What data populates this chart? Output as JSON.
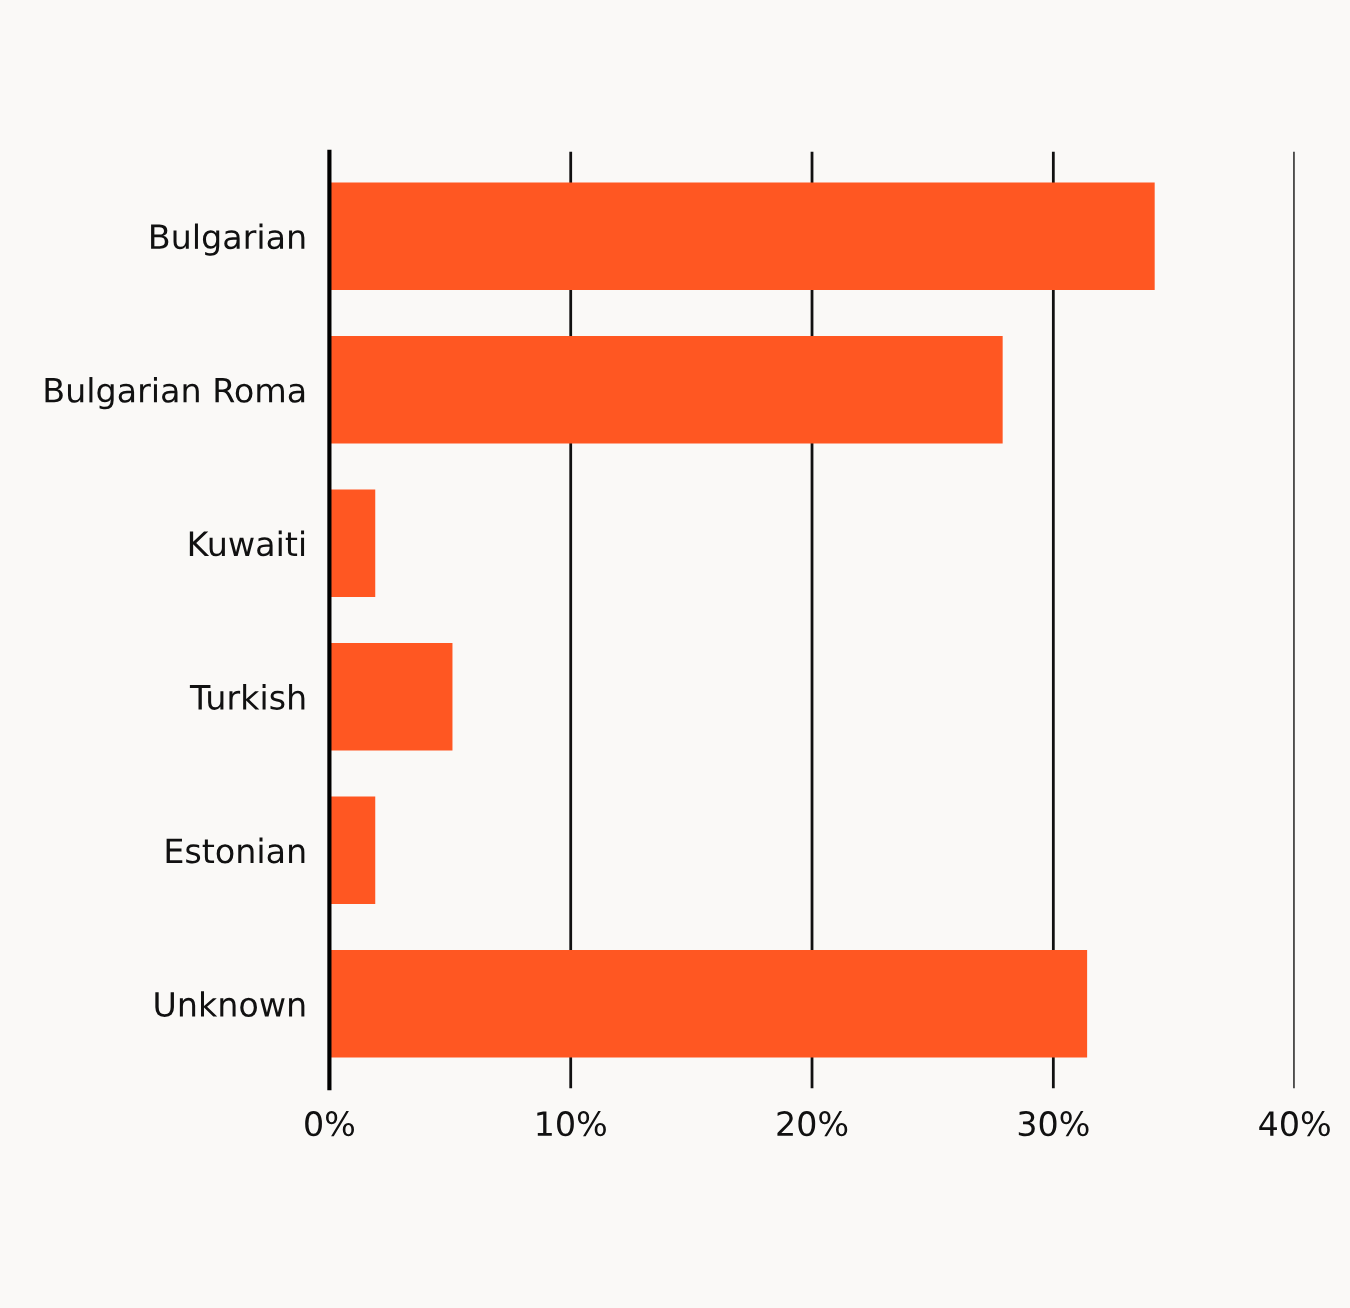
{
  "chart_data": {
    "type": "bar",
    "orientation": "horizontal",
    "categories": [
      "Bulgarian",
      "Bulgarian Roma",
      "Kuwaiti",
      "Turkish",
      "Estonian",
      "Unknown"
    ],
    "values": [
      34.2,
      27.9,
      1.9,
      5.1,
      1.9,
      31.4
    ],
    "color": "#ff5722",
    "xlim": [
      0,
      40
    ],
    "xticks": [
      {
        "value": 0,
        "label": "0%"
      },
      {
        "value": 10,
        "label": "10%"
      },
      {
        "value": 20,
        "label": "20%"
      },
      {
        "value": 30,
        "label": "30%"
      },
      {
        "value": 40,
        "label": "40%"
      }
    ],
    "grid": "x",
    "legend": false
  }
}
